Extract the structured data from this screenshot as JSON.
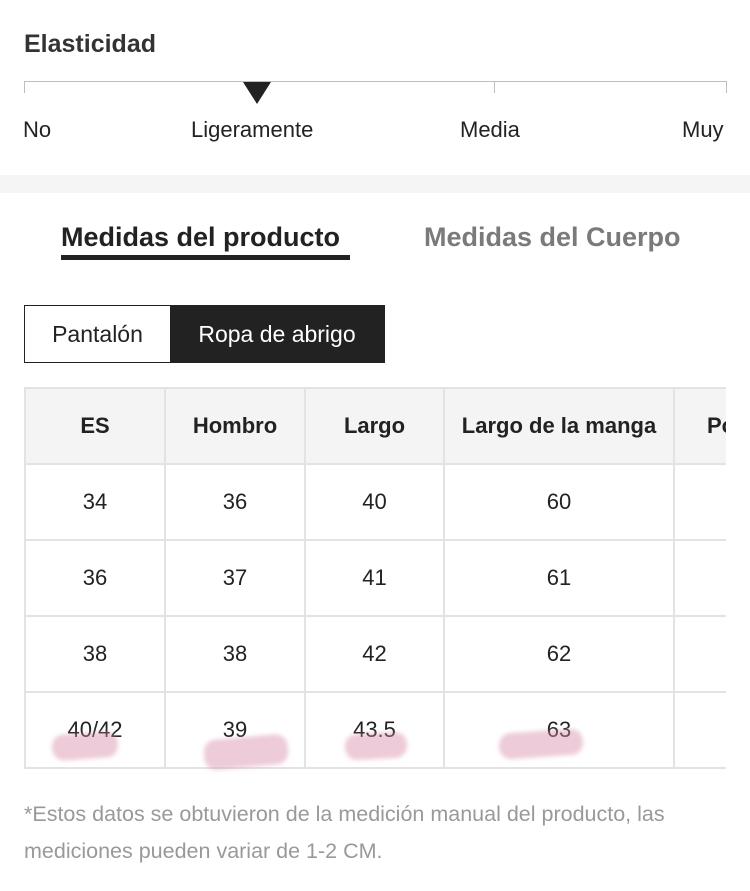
{
  "elasticity": {
    "title": "Elasticidad",
    "levels": [
      "No",
      "Ligeramente",
      "Media",
      "Muy"
    ],
    "selected": "Ligeramente"
  },
  "tabs": [
    {
      "label": "Medidas del producto",
      "active": true
    },
    {
      "label": "Medidas del Cuerpo",
      "active": false
    }
  ],
  "segments": [
    {
      "label": "Pantalón",
      "active": false
    },
    {
      "label": "Ropa de abrigo",
      "active": true
    }
  ],
  "table": {
    "headers": [
      "ES",
      "Hombro",
      "Largo",
      "Largo de la manga",
      "Po"
    ],
    "rows": [
      [
        "34",
        "36",
        "40",
        "60",
        ""
      ],
      [
        "36",
        "37",
        "41",
        "61",
        ""
      ],
      [
        "38",
        "38",
        "42",
        "62",
        ""
      ],
      [
        "40/42",
        "39",
        "43.5",
        "63",
        ""
      ]
    ]
  },
  "note": "*Estos datos se obtuvieron de la medición manual del producto, las mediciones pueden variar de 1-2 CM.",
  "colors": {
    "accent": "#222222",
    "muted": "#999999",
    "divider": "#e3e3e3"
  }
}
